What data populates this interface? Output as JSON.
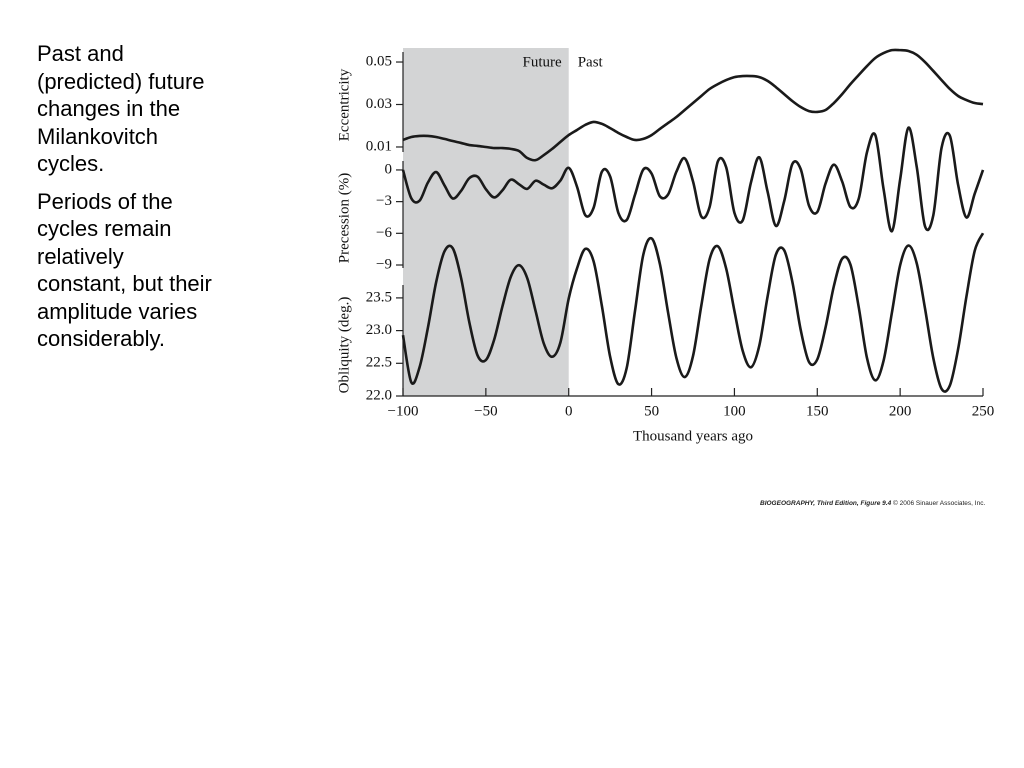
{
  "slide": {
    "paragraphs": [
      [
        "Past and",
        "(predicted) future",
        "changes in the",
        "Milankovitch",
        "cycles."
      ],
      [
        "Periods of the",
        "cycles remain",
        "relatively",
        "constant, but their",
        "amplitude varies",
        "considerably."
      ]
    ],
    "credit": {
      "source": "BIOGEOGRAPHY, Third Edition, Figure 9.4",
      "copyright": "© 2006 Sinauer Associates, Inc."
    }
  },
  "chart_data": [
    {
      "type": "line",
      "ylabel": "Eccentricity",
      "color": "#1a1a1a",
      "shade": {
        "x": [
          -100,
          0
        ],
        "color": "#d3d4d5"
      },
      "annotations": [
        "Future",
        "Past"
      ],
      "x": [
        -100,
        -95,
        -90,
        -85,
        -80,
        -75,
        -70,
        -65,
        -60,
        -55,
        -50,
        -45,
        -40,
        -35,
        -30,
        -25,
        -20,
        -15,
        -10,
        -5,
        0,
        5,
        10,
        15,
        20,
        25,
        30,
        35,
        40,
        45,
        50,
        55,
        60,
        65,
        70,
        75,
        80,
        85,
        90,
        95,
        100,
        105,
        110,
        115,
        120,
        125,
        130,
        135,
        140,
        145,
        150,
        155,
        160,
        165,
        170,
        175,
        180,
        185,
        190,
        195,
        200,
        205,
        210,
        215,
        220,
        225,
        230,
        235,
        240,
        245,
        250
      ],
      "values": [
        0.0133,
        0.0147,
        0.0152,
        0.0152,
        0.0147,
        0.0138,
        0.0128,
        0.0119,
        0.0109,
        0.0105,
        0.01,
        0.0095,
        0.0095,
        0.0091,
        0.0081,
        0.0048,
        0.0038,
        0.0062,
        0.0091,
        0.0124,
        0.0156,
        0.018,
        0.0204,
        0.0218,
        0.0209,
        0.0189,
        0.0166,
        0.0147,
        0.0133,
        0.0138,
        0.0156,
        0.0185,
        0.0213,
        0.0241,
        0.0274,
        0.0307,
        0.034,
        0.0373,
        0.0396,
        0.0415,
        0.0429,
        0.0434,
        0.0434,
        0.0429,
        0.0411,
        0.0382,
        0.0349,
        0.0316,
        0.0288,
        0.0269,
        0.0265,
        0.0274,
        0.0307,
        0.0349,
        0.0396,
        0.0439,
        0.0481,
        0.0519,
        0.0542,
        0.0556,
        0.0556,
        0.0552,
        0.0534,
        0.05,
        0.0458,
        0.0415,
        0.0373,
        0.034,
        0.0321,
        0.0307,
        0.0302
      ],
      "ylim": [
        0.005,
        0.055
      ],
      "yticks": [
        0.05,
        0.03,
        0.01
      ]
    },
    {
      "type": "line",
      "ylabel": "Precession (%)",
      "color": "#1a1a1a",
      "x": [
        -100,
        -95,
        -90,
        -85,
        -80,
        -75,
        -70,
        -65,
        -60,
        -55,
        -50,
        -45,
        -40,
        -35,
        -30,
        -25,
        -20,
        -15,
        -10,
        -5,
        0,
        5,
        10,
        15,
        20,
        25,
        30,
        35,
        40,
        45,
        50,
        55,
        60,
        65,
        70,
        75,
        80,
        85,
        90,
        95,
        100,
        105,
        110,
        115,
        120,
        125,
        130,
        135,
        140,
        145,
        150,
        155,
        160,
        165,
        170,
        175,
        180,
        185,
        190,
        195,
        200,
        205,
        210,
        215,
        220,
        225,
        230,
        235,
        240,
        245,
        250
      ],
      "values": [
        0,
        -2.68,
        -2.91,
        -1.2,
        -0.2,
        -1.45,
        -2.7,
        -1.99,
        -0.78,
        -0.64,
        -1.82,
        -2.6,
        -1.93,
        -0.92,
        -1.35,
        -1.79,
        -1.02,
        -1.4,
        -1.73,
        -1.0,
        0.2,
        -1.58,
        -4.28,
        -3.59,
        -0.17,
        -0.62,
        -4.08,
        -4.74,
        -2.35,
        0.04,
        -0.34,
        -2.5,
        -2.31,
        -0.16,
        1.1,
        -1.08,
        -4.4,
        -3.52,
        0.81,
        0.26,
        -4.06,
        -4.77,
        -1.17,
        1.2,
        -2.05,
        -5.3,
        -2.97,
        0.58,
        0.08,
        -3.38,
        -3.98,
        -1.28,
        0.5,
        -1.09,
        -3.51,
        -2.73,
        1.68,
        3.31,
        -1.81,
        -5.8,
        -0.9,
        4.0,
        0.3,
        -5.33,
        -4.3,
        2.1,
        3.24,
        -1.43,
        -4.5,
        -2.25,
        0
      ],
      "ylim": [
        -9,
        4
      ],
      "yticks": [
        0,
        {
          "value": -3,
          "label": "−3"
        },
        {
          "value": -6,
          "label": "−6"
        },
        {
          "value": -9,
          "label": "−9"
        }
      ]
    },
    {
      "type": "line",
      "ylabel": "Obliquity (deg.)",
      "xlabel": "Thousand years ago",
      "color": "#1a1a1a",
      "x": [
        -100,
        -95,
        -90,
        -85,
        -80,
        -75,
        -70,
        -65,
        -60,
        -55,
        -50,
        -45,
        -40,
        -35,
        -30,
        -25,
        -20,
        -15,
        -10,
        -5,
        0,
        5,
        10,
        15,
        20,
        25,
        30,
        35,
        40,
        45,
        50,
        55,
        60,
        65,
        70,
        75,
        80,
        85,
        90,
        95,
        100,
        105,
        110,
        115,
        120,
        125,
        130,
        135,
        140,
        145,
        150,
        155,
        160,
        165,
        170,
        175,
        180,
        185,
        190,
        195,
        200,
        205,
        210,
        215,
        220,
        225,
        230,
        235,
        240,
        245,
        250
      ],
      "values": [
        22.93,
        22.21,
        22.44,
        23.04,
        23.74,
        24.21,
        24.26,
        23.81,
        23.13,
        22.62,
        22.55,
        22.86,
        23.37,
        23.82,
        24.0,
        23.8,
        23.3,
        22.8,
        22.6,
        22.82,
        23.49,
        23.95,
        24.25,
        24.06,
        23.38,
        22.6,
        22.18,
        22.43,
        23.3,
        24.16,
        24.41,
        24.02,
        23.27,
        22.58,
        22.29,
        22.61,
        23.38,
        24.09,
        24.29,
        23.95,
        23.3,
        22.69,
        22.44,
        22.77,
        23.52,
        24.16,
        24.23,
        23.74,
        23.01,
        22.52,
        22.56,
        23.05,
        23.68,
        24.1,
        24.01,
        23.36,
        22.58,
        22.24,
        22.54,
        23.27,
        24.0,
        24.3,
        24.03,
        23.34,
        22.58,
        22.11,
        22.16,
        22.72,
        23.52,
        24.22,
        24.49
      ],
      "ylim": [
        22.0,
        24.5
      ],
      "yticks": [
        23.5,
        {
          "value": 23,
          "label": "23.0"
        },
        22.5,
        {
          "value": 22,
          "label": "22.0"
        }
      ],
      "xlim": [
        -100,
        250
      ],
      "xticks": [
        {
          "value": -100,
          "label": "−100"
        },
        {
          "value": -50,
          "label": "−50"
        },
        0,
        50,
        100,
        150,
        200,
        250
      ]
    }
  ]
}
